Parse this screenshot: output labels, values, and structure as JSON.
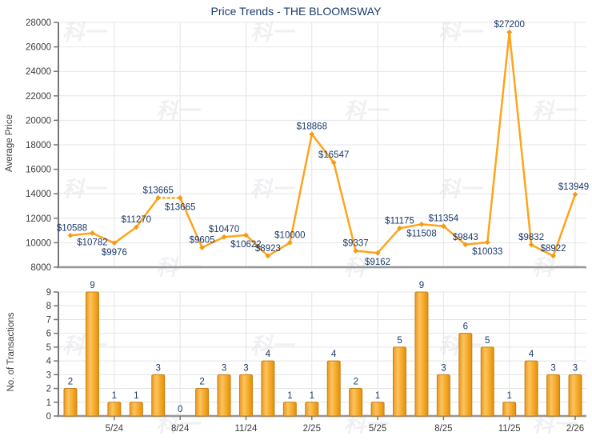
{
  "watermark": {
    "text": "科一"
  },
  "chart": {
    "title": "Price Trends - THE BLOOMSWAY"
  },
  "chart_data": [
    {
      "type": "line",
      "title": "Price Trends - THE BLOOMSWAY",
      "ylabel": "Average Price",
      "ylim": [
        8000,
        28000
      ],
      "ytick_step": 2000,
      "grid": true,
      "line_color": "#ffa41c",
      "marker_color": "#f79a10",
      "label_color": "#1b3a6b",
      "values": [
        10588,
        10782,
        9976,
        11270,
        13665,
        13665,
        9605,
        10470,
        10622,
        8923,
        10000,
        18868,
        16547,
        9337,
        9162,
        11175,
        11508,
        11354,
        9843,
        10033,
        27200,
        9832,
        8922,
        13949
      ],
      "point_labels": [
        "$10588",
        "$10782",
        "$9976",
        "$11270",
        "$13665",
        "$13665",
        "$9605",
        "$10470",
        "$10622",
        "$8923",
        "$10000",
        "$18868",
        "$16547",
        "$9337",
        "$9162",
        "$11175",
        "$11508",
        "$11354",
        "$9843",
        "$10033",
        "$27200",
        "$9832",
        "$8922",
        "$13949"
      ],
      "label_side": [
        "above",
        "below",
        "below",
        "above",
        "above",
        "below",
        "above",
        "above",
        "below",
        "above",
        "above",
        "above",
        "above",
        "above",
        "below",
        "above",
        "below",
        "above",
        "above",
        "below",
        "above",
        "above",
        "above",
        "above"
      ],
      "dashed_segments": [
        [
          4,
          5
        ]
      ],
      "x_ticks": [
        {
          "index": 2,
          "label": "5/24"
        },
        {
          "index": 5,
          "label": "8/24"
        },
        {
          "index": 8,
          "label": "11/24"
        },
        {
          "index": 11,
          "label": "2/25"
        },
        {
          "index": 14,
          "label": "5/25"
        },
        {
          "index": 17,
          "label": "8/25"
        },
        {
          "index": 20,
          "label": "11/25"
        },
        {
          "index": 23,
          "label": "2/26"
        }
      ]
    },
    {
      "type": "bar",
      "ylabel": "No. of Transactions",
      "ylim": [
        0,
        9
      ],
      "ytick_step": 1,
      "grid": true,
      "bar_color": "#f6ad33",
      "label_color": "#1b3a6b",
      "values": [
        2,
        9,
        1,
        1,
        3,
        0,
        2,
        3,
        3,
        4,
        1,
        1,
        4,
        2,
        1,
        5,
        9,
        3,
        6,
        5,
        1,
        4,
        3,
        3
      ],
      "x_ticks": [
        {
          "index": 2,
          "label": "5/24"
        },
        {
          "index": 5,
          "label": "8/24"
        },
        {
          "index": 8,
          "label": "11/24"
        },
        {
          "index": 11,
          "label": "2/25"
        },
        {
          "index": 14,
          "label": "5/25"
        },
        {
          "index": 17,
          "label": "8/25"
        },
        {
          "index": 20,
          "label": "11/25"
        },
        {
          "index": 23,
          "label": "2/26"
        }
      ]
    }
  ]
}
